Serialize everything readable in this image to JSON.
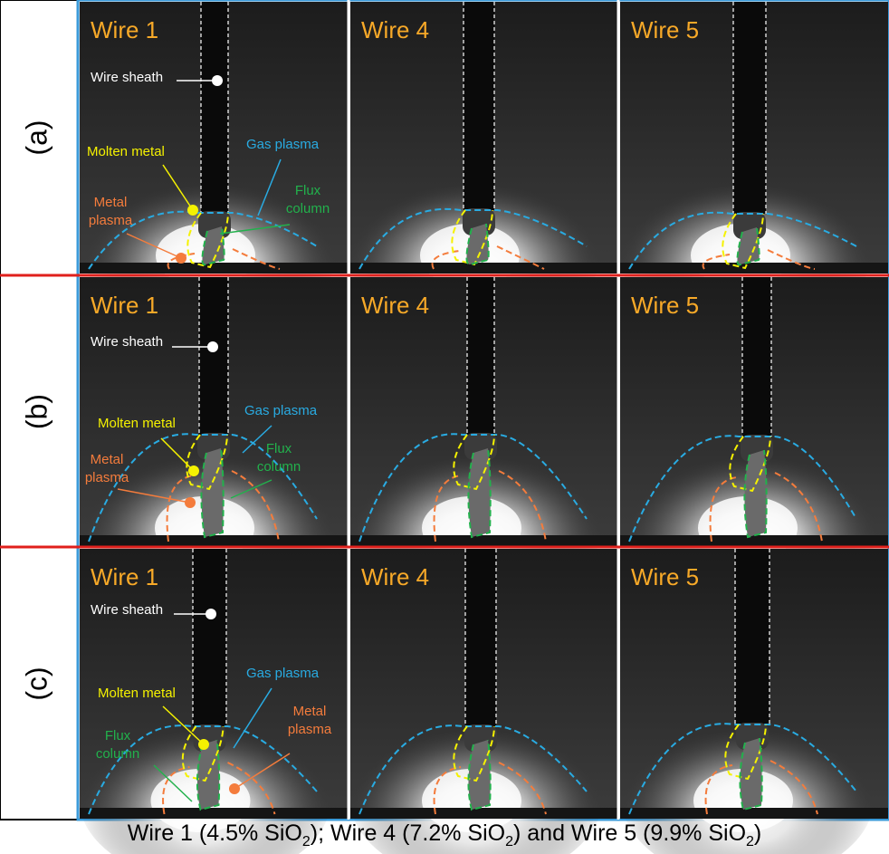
{
  "rows": [
    {
      "label": "(a)",
      "panels": [
        {
          "title": "Wire 1",
          "annotations": [
            {
              "lines": [
                "Wire sheath"
              ]
            },
            {
              "lines": [
                "Molten metal"
              ]
            },
            {
              "lines": [
                "Gas plasma"
              ]
            },
            {
              "lines": [
                "Flux",
                "column"
              ]
            },
            {
              "lines": [
                "Metal",
                "plasma"
              ]
            }
          ]
        },
        {
          "title": "Wire 4"
        },
        {
          "title": "Wire 5"
        }
      ]
    },
    {
      "label": "(b)",
      "panels": [
        {
          "title": "Wire 1",
          "annotations": [
            {
              "lines": [
                "Wire sheath"
              ]
            },
            {
              "lines": [
                "Molten metal"
              ]
            },
            {
              "lines": [
                "Gas plasma"
              ]
            },
            {
              "lines": [
                "Flux",
                "column"
              ]
            },
            {
              "lines": [
                "Metal",
                "plasma"
              ]
            }
          ]
        },
        {
          "title": "Wire 4"
        },
        {
          "title": "Wire 5"
        }
      ]
    },
    {
      "label": "(c)",
      "panels": [
        {
          "title": "Wire 1",
          "annotations": [
            {
              "lines": [
                "Wire sheath"
              ]
            },
            {
              "lines": [
                "Molten metal"
              ]
            },
            {
              "lines": [
                "Gas plasma"
              ]
            },
            {
              "lines": [
                "Flux",
                "column"
              ]
            },
            {
              "lines": [
                "Metal",
                "plasma"
              ]
            }
          ]
        },
        {
          "title": "Wire 4"
        },
        {
          "title": "Wire 5"
        }
      ]
    }
  ],
  "caption": [
    "Wire 1 (4.5% SiO",
    "2",
    "); Wire 4 (7.2% SiO",
    "2",
    ") and Wire 5 (9.9% SiO",
    "2",
    ")"
  ]
}
